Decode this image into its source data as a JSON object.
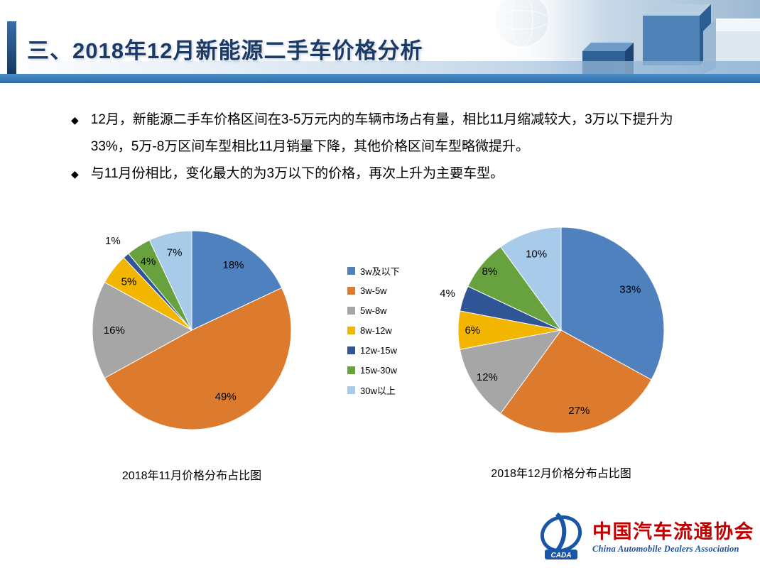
{
  "slide": {
    "title": "三、2018年12月新能源二手车价格分析",
    "bullet_marker": "◆",
    "bullets": [
      "12月，新能源二手车价格区间在3-5万元内的车辆市场占有量，相比11月缩减较大，3万以下提升为33%，5万-8万区间车型相比11月销量下降，其他价格区间车型略微提升。",
      "与11月份相比，变化最大的为3万以下的价格，再次上升为主要车型。"
    ]
  },
  "chart_data": [
    {
      "type": "pie",
      "title": "2018年11月价格分布占比图",
      "categories": [
        "3w及以下",
        "3w-5w",
        "5w-8w",
        "8w-12w",
        "12w-15w",
        "15w-30w",
        "30w以上"
      ],
      "values": [
        18,
        49,
        16,
        5,
        1,
        4,
        7
      ],
      "unit": "%",
      "label_format": "{value}%",
      "colors": [
        "#4E81BD",
        "#DC7B2E",
        "#A6A6A6",
        "#F2B600",
        "#2F5597",
        "#67A23F",
        "#A8CBE9"
      ],
      "start_angle_deg": 0,
      "direction": "clockwise",
      "label_radius": [
        0.78,
        0.75,
        0.78,
        0.8,
        1.2,
        0.82,
        0.8
      ],
      "legend_position": "right-of-chart"
    },
    {
      "type": "pie",
      "title": "2018年12月价格分布占比图",
      "categories": [
        "3w及以下",
        "3w-5w",
        "5w-8w",
        "8w-12w",
        "12w-15w",
        "15w-30w",
        "30w以上"
      ],
      "values": [
        33,
        27,
        12,
        6,
        4,
        8,
        10
      ],
      "unit": "%",
      "label_format": "{value}%",
      "colors": [
        "#4E81BD",
        "#DC7B2E",
        "#A6A6A6",
        "#F2B600",
        "#2F5597",
        "#67A23F",
        "#A8CBE9"
      ],
      "start_angle_deg": 0,
      "direction": "clockwise",
      "label_radius": [
        0.78,
        0.8,
        0.85,
        0.86,
        1.16,
        0.9,
        0.78
      ],
      "legend_position": "left-of-chart"
    }
  ],
  "footer": {
    "org_cn": "中国汽车流通协会",
    "org_en": "China Automobile Dealers Association",
    "logo_text": "CADA"
  }
}
